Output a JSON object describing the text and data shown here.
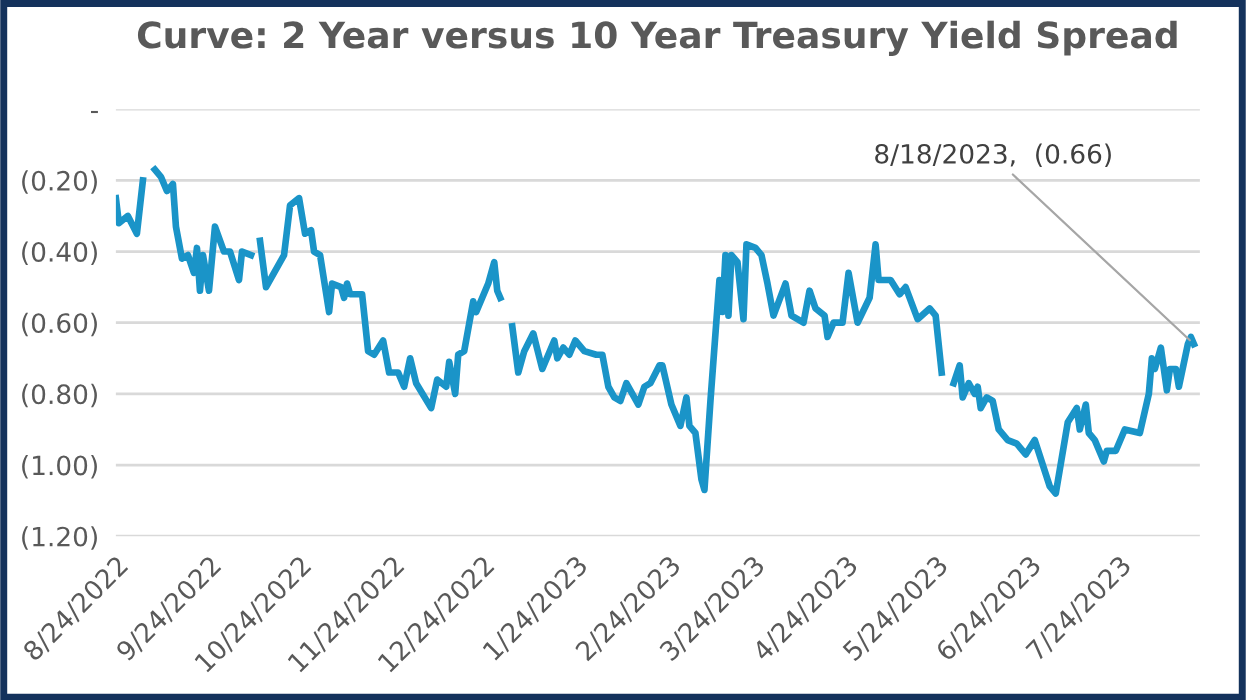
{
  "chart_data": {
    "type": "line",
    "title": "Curve: 2 Year versus 10 Year Treasury Yield Spread",
    "x": [
      "2022-08-24",
      "2022-08-25",
      "2022-08-28",
      "2022-08-31",
      "2022-09-02",
      "2022-09-05",
      "2022-09-06",
      "2022-09-08",
      "2022-09-10",
      "2022-09-12",
      "2022-09-13",
      "2022-09-15",
      "2022-09-17",
      "2022-09-19",
      "2022-09-20",
      "2022-09-21",
      "2022-09-22",
      "2022-09-24",
      "2022-09-26",
      "2022-09-29",
      "2022-10-01",
      "2022-10-04",
      "2022-10-05",
      "2022-10-08",
      "2022-10-10",
      "2022-10-11",
      "2022-10-13",
      "2022-10-19",
      "2022-10-21",
      "2022-10-24",
      "2022-10-26",
      "2022-10-28",
      "2022-10-29",
      "2022-10-31",
      "2022-11-03",
      "2022-11-04",
      "2022-11-07",
      "2022-11-08",
      "2022-11-09",
      "2022-11-10",
      "2022-11-14",
      "2022-11-16",
      "2022-11-18",
      "2022-11-21",
      "2022-11-23",
      "2022-11-26",
      "2022-11-28",
      "2022-11-30",
      "2022-12-02",
      "2022-12-07",
      "2022-12-09",
      "2022-12-12",
      "2022-12-13",
      "2022-12-15",
      "2022-12-16",
      "2022-12-18",
      "2022-12-21",
      "2022-12-22",
      "2022-12-26",
      "2022-12-28",
      "2022-12-29",
      "2022-12-30",
      "2023-01-01",
      "2023-01-03",
      "2023-01-05",
      "2023-01-07",
      "2023-01-10",
      "2023-01-13",
      "2023-01-17",
      "2023-01-18",
      "2023-01-20",
      "2023-01-22",
      "2023-01-24",
      "2023-01-27",
      "2023-01-31",
      "2023-02-02",
      "2023-02-04",
      "2023-02-06",
      "2023-02-08",
      "2023-02-10",
      "2023-02-14",
      "2023-02-16",
      "2023-02-18",
      "2023-02-21",
      "2023-02-22",
      "2023-02-25",
      "2023-02-28",
      "2023-03-02",
      "2023-03-03",
      "2023-03-05",
      "2023-03-07",
      "2023-03-08",
      "2023-03-10",
      "2023-03-13",
      "2023-03-14",
      "2023-03-15",
      "2023-03-16",
      "2023-03-17",
      "2023-03-19",
      "2023-03-21",
      "2023-03-22",
      "2023-03-25",
      "2023-03-27",
      "2023-03-29",
      "2023-03-31",
      "2023-04-04",
      "2023-04-06",
      "2023-04-10",
      "2023-04-12",
      "2023-04-14",
      "2023-04-17",
      "2023-04-18",
      "2023-04-20",
      "2023-04-23",
      "2023-04-25",
      "2023-04-28",
      "2023-05-02",
      "2023-05-04",
      "2023-05-05",
      "2023-05-09",
      "2023-05-12",
      "2023-05-14",
      "2023-05-18",
      "2023-05-22",
      "2023-05-24",
      "2023-05-26",
      "2023-05-29",
      "2023-05-30",
      "2023-06-01",
      "2023-06-02",
      "2023-06-04",
      "2023-06-06",
      "2023-06-07",
      "2023-06-08",
      "2023-06-10",
      "2023-06-12",
      "2023-06-14",
      "2023-06-17",
      "2023-06-20",
      "2023-06-23",
      "2023-06-26",
      "2023-07-01",
      "2023-07-03",
      "2023-07-07",
      "2023-07-10",
      "2023-07-11",
      "2023-07-13",
      "2023-07-14",
      "2023-07-16",
      "2023-07-19",
      "2023-07-20",
      "2023-07-23",
      "2023-07-26",
      "2023-07-31",
      "2023-08-03",
      "2023-08-04",
      "2023-08-05",
      "2023-08-07",
      "2023-08-09",
      "2023-08-10",
      "2023-08-12",
      "2023-08-13",
      "2023-08-16",
      "2023-08-17",
      "2023-08-18"
    ],
    "series": [
      {
        "color": "#1a94c8",
        "values": [
          -0.25,
          -0.32,
          -0.3,
          -0.35,
          -0.2,
          null,
          -0.17,
          -0.19,
          -0.23,
          -0.21,
          -0.33,
          -0.42,
          -0.41,
          -0.46,
          -0.39,
          -0.51,
          -0.41,
          -0.51,
          -0.33,
          -0.4,
          -0.4,
          -0.48,
          -0.4,
          -0.41,
          null,
          -0.37,
          -0.5,
          -0.41,
          -0.27,
          -0.25,
          -0.35,
          -0.34,
          -0.4,
          -0.41,
          -0.57,
          -0.49,
          -0.5,
          -0.53,
          -0.49,
          -0.52,
          -0.52,
          -0.68,
          -0.69,
          -0.65,
          -0.74,
          -0.74,
          -0.78,
          -0.7,
          -0.77,
          -0.84,
          -0.76,
          -0.78,
          -0.71,
          -0.8,
          -0.69,
          -0.68,
          -0.54,
          -0.57,
          -0.49,
          -0.43,
          -0.51,
          -0.53,
          null,
          -0.61,
          -0.74,
          -0.68,
          -0.63,
          -0.73,
          -0.65,
          -0.7,
          -0.67,
          -0.69,
          -0.65,
          -0.68,
          -0.69,
          -0.69,
          -0.78,
          -0.81,
          -0.82,
          -0.77,
          -0.83,
          -0.78,
          -0.77,
          -0.72,
          -0.72,
          -0.83,
          -0.89,
          -0.81,
          -0.89,
          -0.91,
          -1.04,
          -1.07,
          -0.82,
          -0.48,
          -0.57,
          -0.41,
          -0.58,
          -0.41,
          -0.43,
          -0.59,
          -0.38,
          -0.39,
          -0.41,
          -0.49,
          -0.58,
          -0.49,
          -0.58,
          -0.6,
          -0.51,
          -0.56,
          -0.58,
          -0.64,
          -0.6,
          -0.6,
          -0.46,
          -0.6,
          -0.53,
          -0.38,
          -0.48,
          -0.48,
          -0.52,
          -0.5,
          -0.59,
          -0.56,
          -0.58,
          -0.74,
          null,
          -0.77,
          -0.72,
          -0.81,
          -0.77,
          -0.8,
          -0.78,
          -0.84,
          -0.81,
          -0.82,
          -0.9,
          -0.93,
          -0.94,
          -0.97,
          -0.93,
          -1.06,
          -1.08,
          -0.88,
          -0.84,
          -0.9,
          -0.83,
          -0.91,
          -0.93,
          -0.99,
          -0.96,
          -0.96,
          -0.9,
          -0.91,
          -0.8,
          -0.7,
          -0.73,
          -0.67,
          -0.79,
          -0.73,
          -0.73,
          -0.78,
          -0.66,
          -0.64,
          -0.66
        ]
      }
    ],
    "xlim": [
      "2022-08-24",
      "2023-08-20"
    ],
    "xticks": [
      {
        "value": "2022-08-24",
        "label": "8/24/2022"
      },
      {
        "value": "2022-09-24",
        "label": "9/24/2022"
      },
      {
        "value": "2022-10-24",
        "label": "10/24/2022"
      },
      {
        "value": "2022-11-24",
        "label": "11/24/2022"
      },
      {
        "value": "2022-12-24",
        "label": "12/24/2022"
      },
      {
        "value": "2023-01-24",
        "label": "1/24/2023"
      },
      {
        "value": "2023-02-24",
        "label": "2/24/2023"
      },
      {
        "value": "2023-03-24",
        "label": "3/24/2023"
      },
      {
        "value": "2023-04-24",
        "label": "4/24/2023"
      },
      {
        "value": "2023-05-24",
        "label": "5/24/2023"
      },
      {
        "value": "2023-06-24",
        "label": "6/24/2023"
      },
      {
        "value": "2023-07-24",
        "label": "7/24/2023"
      }
    ],
    "ylim": [
      -1.2,
      0
    ],
    "yticks": [
      {
        "value": 0,
        "label": "-"
      },
      {
        "value": -0.2,
        "label": "(0.20)"
      },
      {
        "value": -0.4,
        "label": "(0.40)"
      },
      {
        "value": -0.6,
        "label": "(0.60)"
      },
      {
        "value": -0.8,
        "label": "(0.80)"
      },
      {
        "value": -1.0,
        "label": "(1.00)"
      },
      {
        "value": -1.2,
        "label": "(1.20)"
      }
    ],
    "grid": "y",
    "legend": false,
    "marker": "none",
    "line_style": "solid",
    "annotations": [
      {
        "text": "8/18/2023,  (0.66)",
        "x": "2023-08-18",
        "y": -0.66
      }
    ]
  }
}
